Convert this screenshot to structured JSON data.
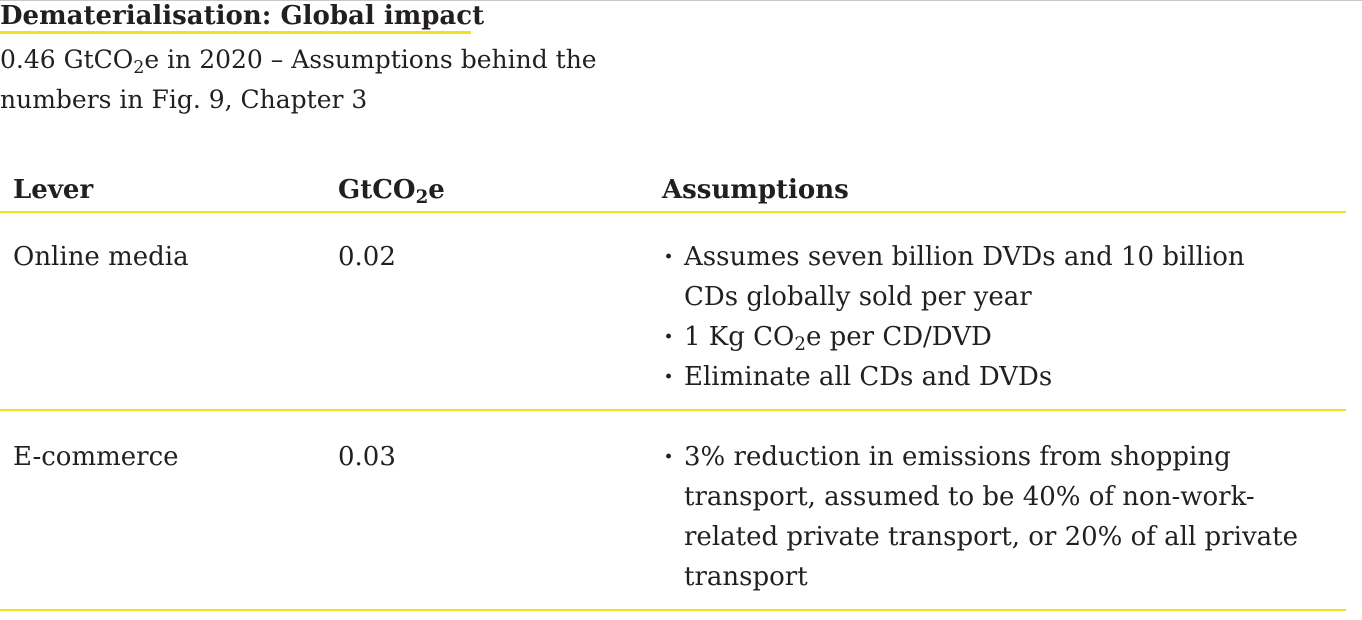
{
  "header": {
    "title": "Dematerialisation: Global impact",
    "subtitle_prefix": "0.46 GtCO",
    "subtitle_sub": "2",
    "subtitle_suffix": "e in 2020 – Assumptions behind the numbers in Fig. 9, Chapter 3"
  },
  "table": {
    "columns": {
      "lever": "Lever",
      "value_prefix": "GtCO",
      "value_sub": "2",
      "value_suffix": "e",
      "assumptions": "Assumptions"
    },
    "rows": [
      {
        "lever": "Online media",
        "value": "0.02",
        "assumptions": [
          {
            "text": "Assumes seven billion DVDs and 10 billion CDs globally sold per year"
          },
          {
            "prefix": "1 Kg CO",
            "sub": "2",
            "suffix": "e per CD/DVD"
          },
          {
            "text": "Eliminate all CDs and DVDs"
          }
        ]
      },
      {
        "lever": "E-commerce",
        "value": "0.03",
        "assumptions": [
          {
            "text": "3% reduction in emissions from shopping transport, assumed to be 40% of non-work-related private transport, or 20% of all private transport"
          }
        ]
      }
    ]
  },
  "colors": {
    "accent_yellow": "#f2e21a",
    "text": "#231f20"
  }
}
